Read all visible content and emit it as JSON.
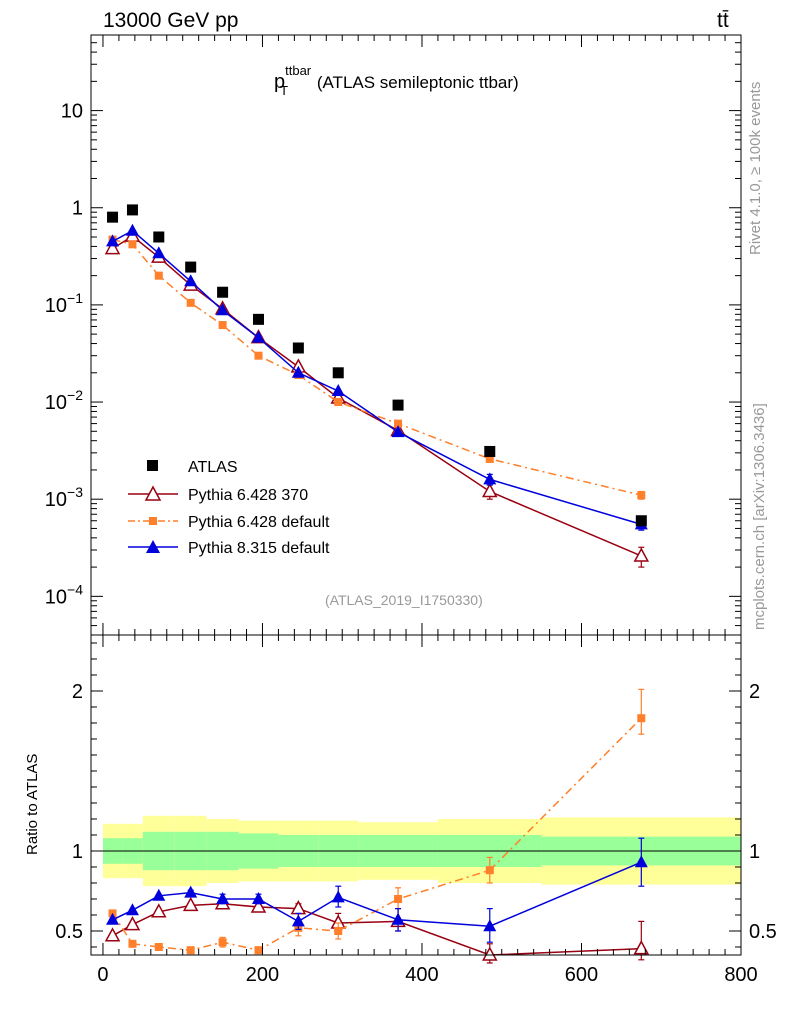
{
  "header": {
    "left": "13000 GeV pp",
    "right": "tt̄"
  },
  "side": {
    "rivet": "Rivet 4.1.0, ≥ 100k events",
    "mcplots": "mcplots.cern.ch [arXiv:1306.3436]"
  },
  "colors": {
    "data": "#000000",
    "py6_370": "#990011",
    "py6_default": "#ff7f2a",
    "py8_default": "#0000dd",
    "band_inner": "#99ff99",
    "band_outer": "#ffff99"
  },
  "chart_data": [
    {
      "type": "scatter",
      "panel": "main",
      "title_main": "p",
      "title_sup": "ttbar",
      "title_sub": "T",
      "title_rest": " (ATLAS semileptonic ttbar)",
      "analysis_ref": "(ATLAS_2019_I1750330)",
      "xlim": [
        -15,
        800
      ],
      "ylim": [
        4e-05,
        60
      ],
      "yscale": "log",
      "yticks": [
        {
          "v": 10,
          "base": "10",
          "exp": ""
        },
        {
          "v": 1,
          "base": "1",
          "exp": ""
        },
        {
          "v": 0.1,
          "base": "10",
          "exp": "−1"
        },
        {
          "v": 0.01,
          "base": "10",
          "exp": "−2"
        },
        {
          "v": 0.001,
          "base": "10",
          "exp": "−3"
        },
        {
          "v": 0.0001,
          "base": "10",
          "exp": "−4"
        }
      ],
      "series": [
        {
          "key": "data",
          "name": "ATLAS",
          "marker": "square",
          "line": false,
          "x": [
            12,
            37,
            70,
            110,
            150,
            195,
            245,
            295,
            370,
            485,
            675
          ],
          "y": [
            0.8,
            0.95,
            0.5,
            0.245,
            0.135,
            0.071,
            0.036,
            0.02,
            0.0093,
            0.0031,
            0.0006
          ]
        },
        {
          "key": "py6_370",
          "name": "Pythia 6.428 370",
          "marker": "triangle-open",
          "line": "solid",
          "x": [
            12,
            37,
            70,
            110,
            150,
            195,
            245,
            295,
            370,
            485,
            675
          ],
          "y": [
            0.38,
            0.51,
            0.31,
            0.16,
            0.091,
            0.046,
            0.023,
            0.011,
            0.0051,
            0.0012,
            0.00026
          ],
          "err_lo": [
            0,
            0,
            0,
            0,
            0,
            0,
            0,
            0,
            0,
            0.0002,
            6e-05
          ],
          "err_hi": [
            0,
            0,
            0,
            0,
            0,
            0,
            0,
            0,
            0,
            0.0002,
            6e-05
          ]
        },
        {
          "key": "py6_default",
          "name": "Pythia 6.428 default",
          "marker": "square-small",
          "line": "dashdot",
          "x": [
            12,
            37,
            70,
            110,
            150,
            195,
            245,
            295,
            370,
            485,
            675
          ],
          "y": [
            0.47,
            0.42,
            0.2,
            0.105,
            0.062,
            0.03,
            0.019,
            0.01,
            0.006,
            0.0026,
            0.0011
          ],
          "err_lo": [
            0,
            0,
            0,
            0,
            0,
            0,
            0,
            0,
            0,
            0.0002,
            0.0001
          ],
          "err_hi": [
            0,
            0,
            0,
            0,
            0,
            0,
            0,
            0,
            0,
            0.0002,
            0.0001
          ]
        },
        {
          "key": "py8_default",
          "name": "Pythia 8.315 default",
          "marker": "triangle",
          "line": "solid",
          "x": [
            12,
            37,
            70,
            110,
            150,
            195,
            245,
            295,
            370,
            485,
            675
          ],
          "y": [
            0.45,
            0.58,
            0.34,
            0.175,
            0.088,
            0.046,
            0.02,
            0.013,
            0.0049,
            0.0016,
            0.00055
          ],
          "err_lo": [
            0,
            0,
            0,
            0,
            0,
            0,
            0,
            0,
            0,
            0.0002,
            7e-05
          ],
          "err_hi": [
            0,
            0,
            0,
            0,
            0,
            0,
            0,
            0,
            0,
            0.0002,
            7e-05
          ]
        }
      ]
    },
    {
      "type": "scatter",
      "panel": "ratio",
      "ylabel": "Ratio to ATLAS",
      "xlim": [
        -15,
        800
      ],
      "ylim": [
        0.35,
        2.35
      ],
      "xticks": [
        0,
        200,
        400,
        600,
        800
      ],
      "yticks": [
        0.5,
        1,
        2
      ],
      "bands": {
        "edges": [
          0,
          25,
          50,
          90,
          130,
          170,
          220,
          270,
          320,
          420,
          550,
          800
        ],
        "inner_lo": [
          0.92,
          0.92,
          0.88,
          0.88,
          0.88,
          0.89,
          0.9,
          0.9,
          0.9,
          0.9,
          0.91
        ],
        "inner_hi": [
          1.08,
          1.08,
          1.12,
          1.12,
          1.12,
          1.11,
          1.1,
          1.1,
          1.1,
          1.1,
          1.09
        ],
        "outer_lo": [
          0.83,
          0.83,
          0.78,
          0.78,
          0.8,
          0.81,
          0.81,
          0.81,
          0.82,
          0.8,
          0.79
        ],
        "outer_hi": [
          1.17,
          1.17,
          1.22,
          1.22,
          1.2,
          1.19,
          1.19,
          1.19,
          1.18,
          1.2,
          1.21
        ]
      },
      "series": [
        {
          "key": "py6_370",
          "name": "Pythia 6.428 370",
          "marker": "triangle-open",
          "line": "solid",
          "x": [
            12,
            37,
            70,
            110,
            150,
            195,
            245,
            295,
            370,
            485,
            675
          ],
          "y": [
            0.47,
            0.54,
            0.62,
            0.66,
            0.67,
            0.65,
            0.64,
            0.55,
            0.56,
            0.35,
            0.39
          ],
          "err_lo": [
            0,
            0,
            0,
            0,
            0,
            0.02,
            0.02,
            0.04,
            0.06,
            0.05,
            0.07
          ],
          "err_hi": [
            0,
            0,
            0,
            0,
            0,
            0.02,
            0.03,
            0.06,
            0.08,
            0.07,
            0.17
          ]
        },
        {
          "key": "py6_default",
          "name": "Pythia 6.428 default",
          "marker": "square-small",
          "line": "dashdot",
          "x": [
            12,
            37,
            70,
            110,
            150,
            195,
            245,
            295,
            370,
            485,
            675
          ],
          "y": [
            0.61,
            0.42,
            0.4,
            0.38,
            0.43,
            0.38,
            0.52,
            0.5,
            0.7,
            0.88,
            1.83
          ],
          "err_lo": [
            0,
            0,
            0,
            0.015,
            0.03,
            0.02,
            0.05,
            0.05,
            0.06,
            0.08,
            0.1
          ],
          "err_hi": [
            0,
            0,
            0,
            0.015,
            0.03,
            0.02,
            0.05,
            0.05,
            0.07,
            0.08,
            0.18
          ]
        },
        {
          "key": "py8_default",
          "name": "Pythia 8.315 default",
          "marker": "triangle",
          "line": "solid",
          "x": [
            12,
            37,
            70,
            110,
            150,
            195,
            245,
            295,
            370,
            485,
            675
          ],
          "y": [
            0.57,
            0.63,
            0.72,
            0.74,
            0.7,
            0.7,
            0.56,
            0.71,
            0.57,
            0.53,
            0.93
          ],
          "err_lo": [
            0,
            0,
            0,
            0.015,
            0.03,
            0.03,
            0.05,
            0.06,
            0.07,
            0.1,
            0.15
          ],
          "err_hi": [
            0,
            0,
            0,
            0.015,
            0.03,
            0.03,
            0.05,
            0.07,
            0.07,
            0.11,
            0.15
          ]
        }
      ]
    }
  ]
}
